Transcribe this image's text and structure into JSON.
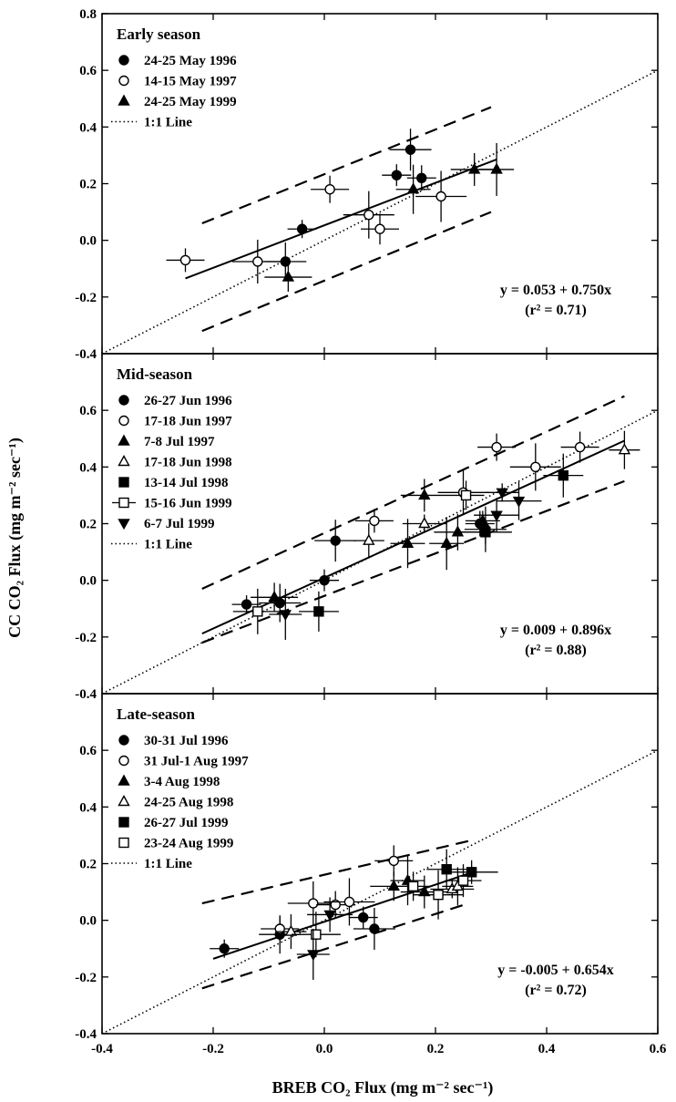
{
  "xlabel": "BREB CO₂ Flux (mg m⁻² sec⁻¹)",
  "ylabel": "CC CO₂ Flux (mg m⁻² sec⁻¹)",
  "chart_data": [
    {
      "type": "scatter",
      "title": "Early season",
      "xlim": [
        -0.4,
        0.6
      ],
      "ylim": [
        -0.4,
        0.8
      ],
      "xticks": [
        "-0.4",
        "-0.2",
        "0.0",
        "0.2",
        "0.4",
        "0.6"
      ],
      "yticks": [
        "-0.4",
        "-0.2",
        "0.0",
        "0.2",
        "0.4",
        "0.6",
        "0.8"
      ],
      "equation": "y = 0.053 + 0.750x",
      "r2": "(r² = 0.71)",
      "one_to_one": "1:1 Line",
      "fit": {
        "intercept": 0.053,
        "slope": 0.75,
        "x_range": [
          -0.25,
          0.31
        ]
      },
      "bands": [
        {
          "p1": [
            -0.22,
            0.06
          ],
          "p2": [
            0.3,
            0.47
          ]
        },
        {
          "p1": [
            -0.22,
            -0.32
          ],
          "p2": [
            0.3,
            0.1
          ]
        }
      ],
      "series": [
        {
          "name": "24-25 May 1996",
          "marker": "filled-circle",
          "points": [
            [
              -0.04,
              0.04
            ],
            [
              -0.07,
              -0.075
            ],
            [
              0.13,
              0.23
            ],
            [
              0.155,
              0.32
            ],
            [
              0.175,
              0.22
            ]
          ]
        },
        {
          "name": "14-15 May 1997",
          "marker": "open-circle",
          "points": [
            [
              -0.25,
              -0.07
            ],
            [
              -0.12,
              -0.075
            ],
            [
              0.01,
              0.18
            ],
            [
              0.08,
              0.09
            ],
            [
              0.1,
              0.04
            ],
            [
              0.21,
              0.155
            ]
          ]
        },
        {
          "name": "24-25 May 1999",
          "marker": "filled-triangle",
          "points": [
            [
              -0.065,
              -0.13
            ],
            [
              0.16,
              0.18
            ],
            [
              0.27,
              0.25
            ],
            [
              0.31,
              0.25
            ]
          ]
        }
      ]
    },
    {
      "type": "scatter",
      "title": "Mid-season",
      "xlim": [
        -0.4,
        0.6
      ],
      "ylim": [
        -0.4,
        0.8
      ],
      "xticks": [
        "-0.4",
        "-0.2",
        "0.0",
        "0.2",
        "0.4",
        "0.6"
      ],
      "yticks": [
        "-0.4",
        "-0.2",
        "0.0",
        "0.2",
        "0.4",
        "0.6"
      ],
      "equation": "y = 0.009 + 0.896x",
      "r2": "(r² = 0.88)",
      "one_to_one": "1:1 Line",
      "fit": {
        "intercept": 0.009,
        "slope": 0.896,
        "x_range": [
          -0.22,
          0.54
        ]
      },
      "bands": [
        {
          "p1": [
            -0.22,
            -0.03
          ],
          "p2": [
            0.54,
            0.65
          ]
        },
        {
          "p1": [
            -0.22,
            -0.22
          ],
          "p2": [
            0.54,
            0.35
          ]
        }
      ],
      "series": [
        {
          "name": "26-27 Jun 1996",
          "marker": "filled-circle",
          "points": [
            [
              -0.14,
              -0.085
            ],
            [
              -0.08,
              -0.08
            ],
            [
              0.0,
              0.0
            ],
            [
              0.02,
              0.14
            ],
            [
              0.28,
              0.2
            ],
            [
              0.29,
              0.18
            ]
          ]
        },
        {
          "name": "17-18 Jun 1997",
          "marker": "open-circle",
          "points": [
            [
              0.09,
              0.21
            ],
            [
              0.25,
              0.31
            ],
            [
              0.31,
              0.47
            ],
            [
              0.38,
              0.4
            ],
            [
              0.46,
              0.47
            ]
          ]
        },
        {
          "name": "7-8 Jul 1997",
          "marker": "filled-triangle",
          "points": [
            [
              -0.09,
              -0.06
            ],
            [
              0.15,
              0.13
            ],
            [
              0.18,
              0.3
            ],
            [
              0.22,
              0.13
            ],
            [
              0.24,
              0.17
            ],
            [
              0.285,
              0.21
            ]
          ]
        },
        {
          "name": "17-18 Jun 1998",
          "marker": "open-triangle",
          "points": [
            [
              0.08,
              0.14
            ],
            [
              0.18,
              0.2
            ],
            [
              0.54,
              0.46
            ]
          ]
        },
        {
          "name": "13-14 Jul 1998",
          "marker": "filled-square",
          "points": [
            [
              -0.01,
              -0.11
            ],
            [
              0.29,
              0.17
            ],
            [
              0.43,
              0.37
            ]
          ]
        },
        {
          "name": "15-16 Jun 1999",
          "marker": "open-square",
          "points": [
            [
              -0.12,
              -0.11
            ],
            [
              0.255,
              0.3
            ]
          ]
        },
        {
          "name": "6-7 Jul 1999",
          "marker": "filled-triangle-down",
          "points": [
            [
              -0.07,
              -0.12
            ],
            [
              0.31,
              0.23
            ],
            [
              0.32,
              0.31
            ],
            [
              0.35,
              0.28
            ]
          ]
        }
      ]
    },
    {
      "type": "scatter",
      "title": "Late-season",
      "xlim": [
        -0.4,
        0.6
      ],
      "ylim": [
        -0.4,
        0.8
      ],
      "xticks": [
        "-0.4",
        "-0.2",
        "0.0",
        "0.2",
        "0.4",
        "0.6"
      ],
      "yticks": [
        "-0.4",
        "-0.2",
        "0.0",
        "0.2",
        "0.4",
        "0.6"
      ],
      "equation": "y = -0.005 + 0.654x",
      "r2": "(r² = 0.72)",
      "one_to_one": "1:1 Line",
      "fit": {
        "intercept": -0.005,
        "slope": 0.654,
        "x_range": [
          -0.2,
          0.27
        ]
      },
      "bands": [
        {
          "p1": [
            -0.22,
            0.06
          ],
          "p2": [
            0.26,
            0.28
          ]
        },
        {
          "p1": [
            -0.22,
            -0.24
          ],
          "p2": [
            0.26,
            0.06
          ]
        }
      ],
      "series": [
        {
          "name": "30-31 Jul 1996",
          "marker": "filled-circle",
          "points": [
            [
              -0.18,
              -0.1
            ],
            [
              -0.08,
              -0.05
            ],
            [
              0.07,
              0.01
            ],
            [
              0.09,
              -0.03
            ]
          ]
        },
        {
          "name": "31 Jul-1 Aug 1997",
          "marker": "open-circle",
          "points": [
            [
              -0.08,
              -0.03
            ],
            [
              -0.02,
              0.06
            ],
            [
              0.02,
              0.055
            ],
            [
              0.045,
              0.065
            ],
            [
              0.125,
              0.21
            ]
          ]
        },
        {
          "name": "3-4 Aug 1998",
          "marker": "filled-triangle",
          "points": [
            [
              0.125,
              0.12
            ],
            [
              0.15,
              0.14
            ],
            [
              0.18,
              0.1
            ]
          ]
        },
        {
          "name": "24-25 Aug 1998",
          "marker": "open-triangle",
          "points": [
            [
              -0.06,
              -0.04
            ],
            [
              0.23,
              0.11
            ],
            [
              0.24,
              0.12
            ]
          ]
        },
        {
          "name": "26-27 Jul 1999",
          "marker": "filled-square",
          "points": [
            [
              0.22,
              0.18
            ],
            [
              0.265,
              0.17
            ]
          ]
        },
        {
          "name": "23-24 Aug 1999",
          "marker": "open-square",
          "points": [
            [
              -0.015,
              -0.05
            ],
            [
              0.16,
              0.12
            ],
            [
              0.205,
              0.09
            ],
            [
              0.25,
              0.14
            ]
          ]
        },
        {
          "name": "",
          "marker": "filled-triangle-down",
          "points": [
            [
              -0.02,
              -0.12
            ],
            [
              0.01,
              0.02
            ]
          ]
        }
      ]
    }
  ]
}
